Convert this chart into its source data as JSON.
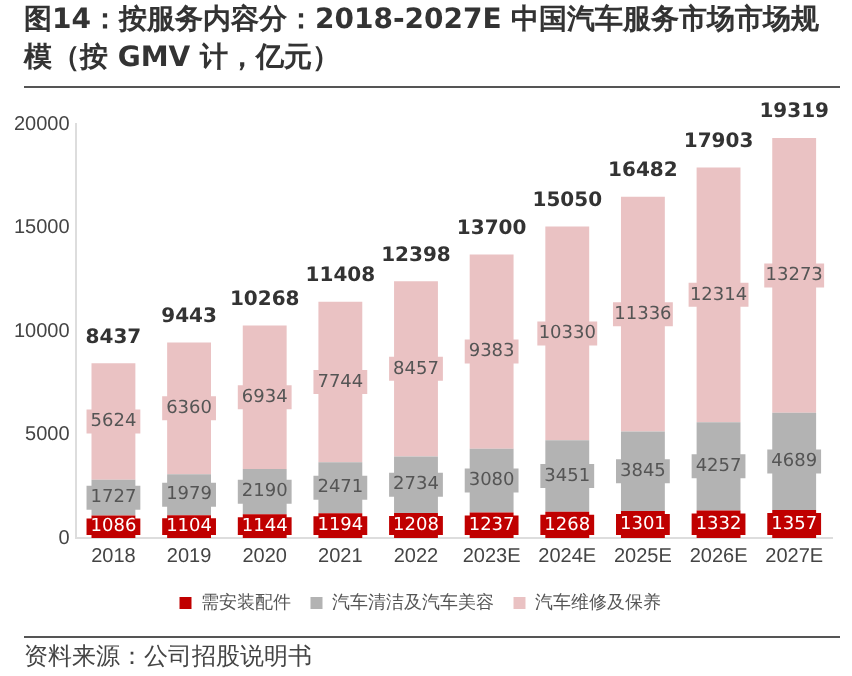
{
  "chart_data": {
    "type": "bar",
    "title": "图14：按服务内容分：2018-2027E 中国汽车服务市场市场规模（按 GMV 计，亿元）",
    "categories": [
      "2018",
      "2019",
      "2020",
      "2021",
      "2022",
      "2023E",
      "2024E",
      "2025E",
      "2026E",
      "2027E"
    ],
    "series": [
      {
        "name": "需安装配件",
        "color": "#c00000",
        "values": [
          1086,
          1104,
          1144,
          1194,
          1208,
          1237,
          1268,
          1301,
          1332,
          1357
        ]
      },
      {
        "name": "汽车清洁及汽车美容",
        "color": "#b3b3b3",
        "values": [
          1727,
          1979,
          2190,
          2471,
          2734,
          3080,
          3451,
          3845,
          4257,
          4689
        ]
      },
      {
        "name": "汽车维修及保养",
        "color": "#eac2c3",
        "values": [
          5624,
          6360,
          6934,
          7744,
          8457,
          9383,
          10330,
          11336,
          12314,
          13273
        ]
      }
    ],
    "stacked": true,
    "data_labels": true,
    "totals": [
      "8437",
      "9443",
      "10268",
      "11408",
      "12398",
      "13700",
      "15050",
      "16482",
      "17903",
      "19319"
    ],
    "ylim": [
      0,
      20000
    ],
    "yticks": [
      0,
      5000,
      10000,
      15000,
      20000
    ],
    "grid": false,
    "legend": "bottom",
    "annotations": [
      "资料来源：公司招股说明书"
    ]
  }
}
